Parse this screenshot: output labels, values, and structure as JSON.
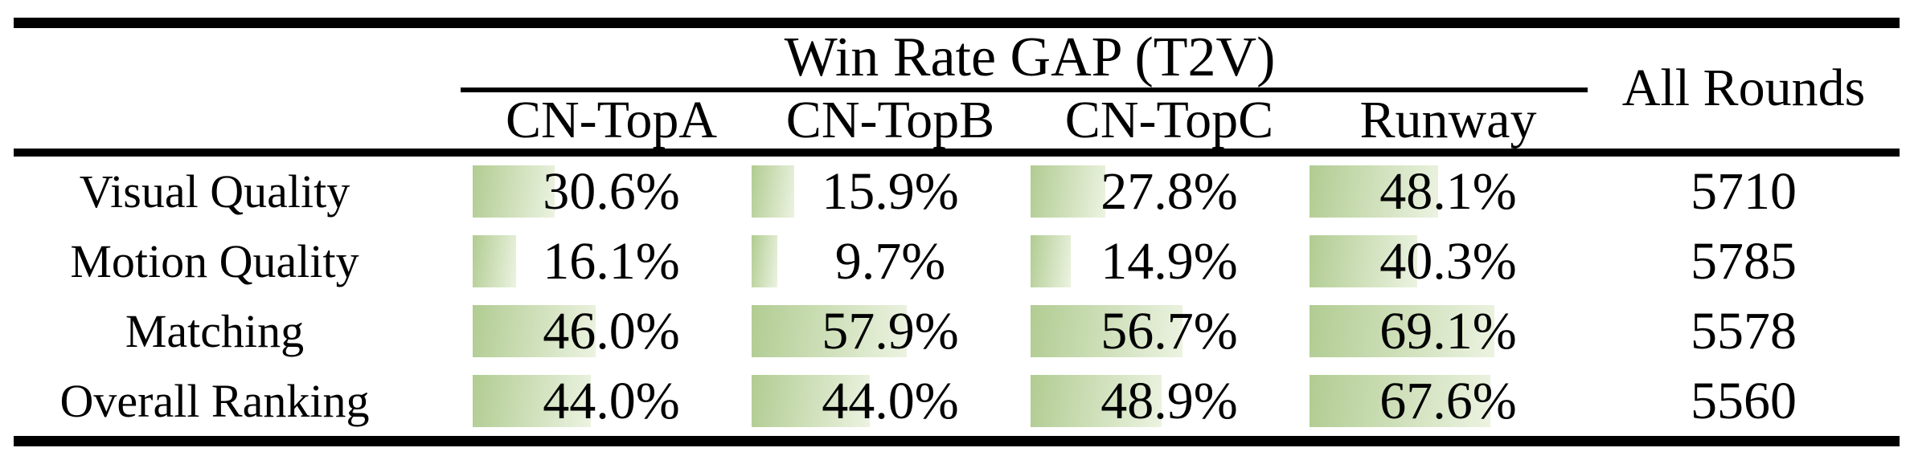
{
  "table": {
    "title": "Win Rate GAP (T2V)",
    "all_rounds_header": "All Rounds",
    "columns": [
      "CN-TopA",
      "CN-TopB",
      "CN-TopC",
      "Runway"
    ],
    "rows": [
      {
        "label": "Visual Quality",
        "cells": [
          {
            "text": "30.6%",
            "value": 30.6
          },
          {
            "text": "15.9%",
            "value": 15.9
          },
          {
            "text": "27.8%",
            "value": 27.8
          },
          {
            "text": "48.1%",
            "value": 48.1
          }
        ],
        "all_rounds": "5710"
      },
      {
        "label": "Motion Quality",
        "cells": [
          {
            "text": "16.1%",
            "value": 16.1
          },
          {
            "text": "9.7%",
            "value": 9.7
          },
          {
            "text": "14.9%",
            "value": 14.9
          },
          {
            "text": "40.3%",
            "value": 40.3
          }
        ],
        "all_rounds": "5785"
      },
      {
        "label": "Matching",
        "cells": [
          {
            "text": "46.0%",
            "value": 46.0
          },
          {
            "text": "57.9%",
            "value": 57.9
          },
          {
            "text": "56.7%",
            "value": 56.7
          },
          {
            "text": "69.1%",
            "value": 69.1
          }
        ],
        "all_rounds": "5578"
      },
      {
        "label": "Overall Ranking",
        "cells": [
          {
            "text": "44.0%",
            "value": 44.0
          },
          {
            "text": "44.0%",
            "value": 44.0
          },
          {
            "text": "48.9%",
            "value": 48.9
          },
          {
            "text": "67.6%",
            "value": 67.6
          }
        ],
        "all_rounds": "5560"
      }
    ],
    "bar_gradient": {
      "start": "#b1cc92",
      "end": "#ecf3e1"
    },
    "rule_color": "#000000",
    "text_color": "#000000",
    "background_color": "#ffffff"
  },
  "chart_data": {
    "type": "table",
    "title": "Win Rate GAP (T2V)",
    "columns": [
      "CN-TopA",
      "CN-TopB",
      "CN-TopC",
      "Runway",
      "All Rounds"
    ],
    "row_labels": [
      "Visual Quality",
      "Motion Quality",
      "Matching",
      "Overall Ranking"
    ],
    "series": [
      {
        "name": "Visual Quality",
        "win_rate_gap_percent": [
          30.6,
          15.9,
          27.8,
          48.1
        ],
        "all_rounds": 5710
      },
      {
        "name": "Motion Quality",
        "win_rate_gap_percent": [
          16.1,
          9.7,
          14.9,
          40.3
        ],
        "all_rounds": 5785
      },
      {
        "name": "Matching",
        "win_rate_gap_percent": [
          46.0,
          57.9,
          56.7,
          69.1
        ],
        "all_rounds": 5578
      },
      {
        "name": "Overall Ranking",
        "win_rate_gap_percent": [
          44.0,
          44.0,
          48.9,
          67.6
        ],
        "all_rounds": 5560
      }
    ],
    "bar_scale": "cell width = 100%, green data bars proportional to percent value",
    "layout": "booktabs-style table: heavy top/bottom rules, medium mid rule, thin spanner rule under title"
  }
}
